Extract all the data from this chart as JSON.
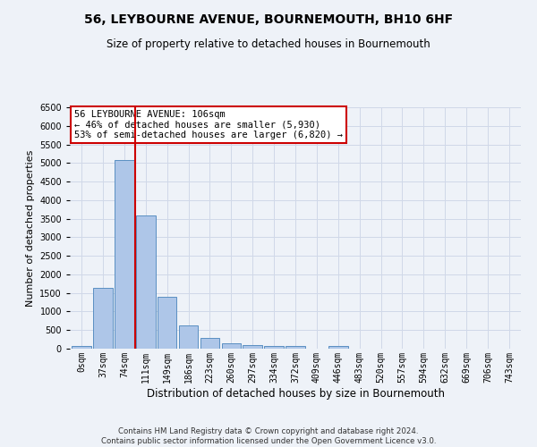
{
  "title": "56, LEYBOURNE AVENUE, BOURNEMOUTH, BH10 6HF",
  "subtitle": "Size of property relative to detached houses in Bournemouth",
  "xlabel": "Distribution of detached houses by size in Bournemouth",
  "ylabel": "Number of detached properties",
  "footer_line1": "Contains HM Land Registry data © Crown copyright and database right 2024.",
  "footer_line2": "Contains public sector information licensed under the Open Government Licence v3.0.",
  "bin_labels": [
    "0sqm",
    "37sqm",
    "74sqm",
    "111sqm",
    "149sqm",
    "186sqm",
    "223sqm",
    "260sqm",
    "297sqm",
    "334sqm",
    "372sqm",
    "409sqm",
    "446sqm",
    "483sqm",
    "520sqm",
    "557sqm",
    "594sqm",
    "632sqm",
    "669sqm",
    "706sqm",
    "743sqm"
  ],
  "bar_heights": [
    75,
    1630,
    5080,
    3580,
    1400,
    620,
    300,
    155,
    100,
    65,
    70,
    0,
    65,
    0,
    0,
    0,
    0,
    0,
    0,
    0,
    0
  ],
  "bar_color": "#aec6e8",
  "bar_edge_color": "#5a8fc2",
  "grid_color": "#d0d8e8",
  "vline_color": "#cc0000",
  "annotation_text": "56 LEYBOURNE AVENUE: 106sqm\n← 46% of detached houses are smaller (5,930)\n53% of semi-detached houses are larger (6,820) →",
  "annotation_box_color": "#ffffff",
  "annotation_box_edge": "#cc0000",
  "ylim": [
    0,
    6500
  ],
  "yticks": [
    0,
    500,
    1000,
    1500,
    2000,
    2500,
    3000,
    3500,
    4000,
    4500,
    5000,
    5500,
    6000,
    6500
  ],
  "background_color": "#eef2f8",
  "plot_bg_color": "#eef2f8",
  "title_fontsize": 10,
  "subtitle_fontsize": 8.5,
  "ylabel_fontsize": 8,
  "xlabel_fontsize": 8.5,
  "tick_fontsize": 7,
  "footer_fontsize": 6.2,
  "annotation_fontsize": 7.5
}
